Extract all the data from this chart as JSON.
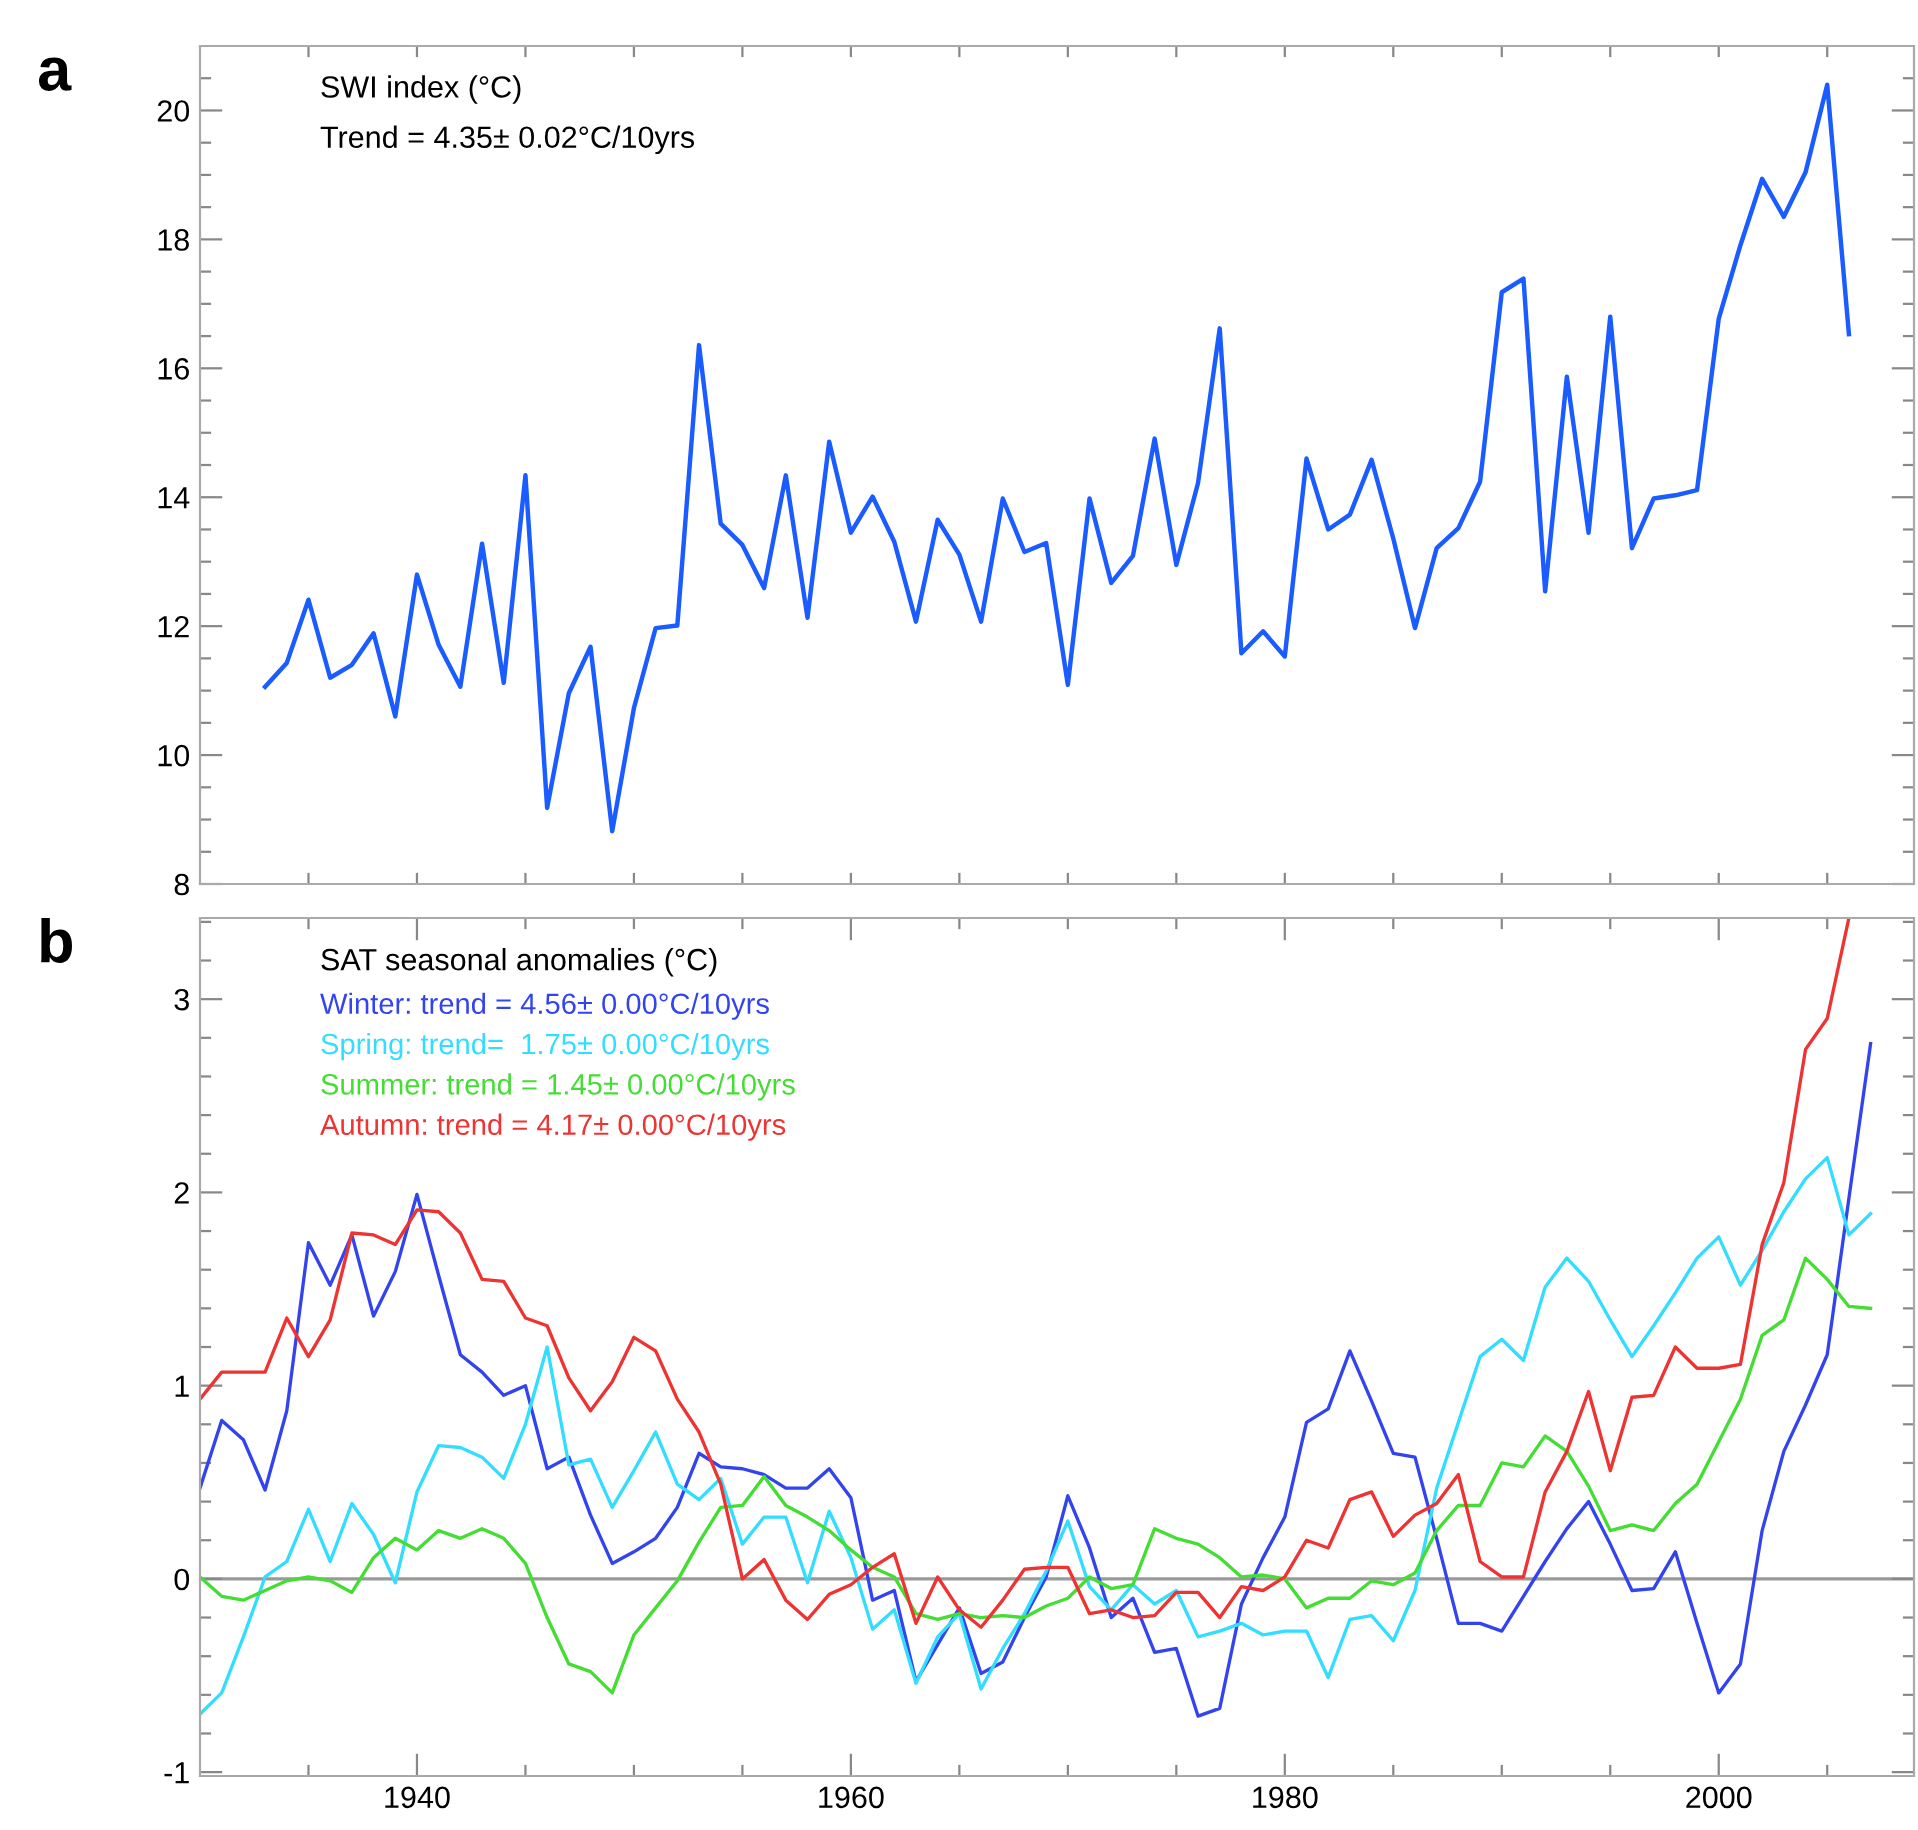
{
  "chart_data": [
    {
      "type": "line",
      "title": "a",
      "annotations": [
        "SWI index (°C)",
        "Trend = 4.35± 0.02°C/10yrs"
      ],
      "xlim": [
        1930,
        2009
      ],
      "ylim": [
        8,
        21
      ],
      "tick_labels": "y",
      "xticks": [
        {
          "value": 1935,
          "label": null
        },
        {
          "value": 1940,
          "label": null
        },
        {
          "value": 1945,
          "label": null
        },
        {
          "value": 1950,
          "label": null
        },
        {
          "value": 1955,
          "label": null
        },
        {
          "value": 1960,
          "label": null
        },
        {
          "value": 1965,
          "label": null
        },
        {
          "value": 1970,
          "label": null
        },
        {
          "value": 1975,
          "label": null
        },
        {
          "value": 1980,
          "label": null
        },
        {
          "value": 1985,
          "label": null
        },
        {
          "value": 1990,
          "label": null
        },
        {
          "value": 1995,
          "label": null
        },
        {
          "value": 2000,
          "label": null
        },
        {
          "value": 2005,
          "label": null
        }
      ],
      "yticks": [
        8,
        {
          "value": 8.5,
          "label": null
        },
        {
          "value": 9,
          "label": null
        },
        {
          "value": 9.5,
          "label": null
        },
        10,
        {
          "value": 10.5,
          "label": null
        },
        {
          "value": 11,
          "label": null
        },
        {
          "value": 11.5,
          "label": null
        },
        12,
        {
          "value": 12.5,
          "label": null
        },
        {
          "value": 13,
          "label": null
        },
        {
          "value": 13.5,
          "label": null
        },
        14,
        {
          "value": 14.5,
          "label": null
        },
        {
          "value": 15,
          "label": null
        },
        {
          "value": 15.5,
          "label": null
        },
        16,
        {
          "value": 16.5,
          "label": null
        },
        {
          "value": 17,
          "label": null
        },
        {
          "value": 17.5,
          "label": null
        },
        18,
        {
          "value": 18.5,
          "label": null
        },
        {
          "value": 19,
          "label": null
        },
        {
          "value": 19.5,
          "label": null
        },
        20,
        {
          "value": 20.5,
          "label": null
        }
      ],
      "series": [
        {
          "color": "#1a5cff",
          "x": [
            1933,
            1934,
            1935,
            1936,
            1937,
            1938,
            1939,
            1940,
            1941,
            1942,
            1943,
            1944,
            1945,
            1946,
            1947,
            1948,
            1949,
            1950,
            1951,
            1952,
            1953,
            1954,
            1955,
            1956,
            1957,
            1958,
            1959,
            1960,
            1961,
            1962,
            1963,
            1964,
            1965,
            1966,
            1967,
            1968,
            1969,
            1970,
            1971,
            1972,
            1973,
            1974,
            1975,
            1976,
            1977,
            1978,
            1979,
            1980,
            1981,
            1982,
            1983,
            1984,
            1985,
            1986,
            1987,
            1988,
            1989,
            1990,
            1991,
            1992,
            1993,
            1994,
            1995,
            1996,
            1997,
            1998,
            1999,
            2000,
            2001,
            2002,
            2003,
            2004,
            2005,
            2006
          ],
          "values": [
            11.06,
            11.43,
            12.41,
            11.2,
            11.4,
            11.89,
            10.6,
            12.8,
            11.71,
            11.06,
            13.28,
            11.12,
            14.34,
            9.18,
            10.96,
            11.68,
            8.82,
            10.73,
            11.97,
            12.01,
            16.36,
            13.59,
            13.26,
            12.59,
            14.34,
            12.13,
            14.86,
            13.45,
            14.01,
            13.31,
            12.07,
            13.65,
            13.11,
            12.07,
            13.98,
            13.15,
            13.29,
            11.09,
            13.98,
            12.67,
            13.09,
            14.91,
            12.95,
            14.22,
            16.62,
            11.58,
            11.92,
            11.53,
            14.6,
            13.5,
            13.73,
            14.58,
            13.36,
            11.97,
            13.21,
            13.52,
            14.24,
            17.18,
            17.39,
            12.54,
            15.87,
            13.45,
            16.8,
            13.21,
            13.98,
            14.03,
            14.11,
            16.77,
            17.91,
            18.94,
            18.35,
            19.04,
            20.4,
            16.53
          ]
        }
      ]
    },
    {
      "type": "line",
      "title": "b",
      "annotations": [
        "SAT seasonal anomalies (°C)"
      ],
      "legend": "top left",
      "xlim": [
        1930,
        2009
      ],
      "ylim": [
        -1.02,
        3.42
      ],
      "xticks": [
        {
          "value": 1935,
          "label": null
        },
        1940,
        {
          "value": 1945,
          "label": null
        },
        {
          "value": 1950,
          "label": null
        },
        {
          "value": 1955,
          "label": null
        },
        1960,
        {
          "value": 1965,
          "label": null
        },
        {
          "value": 1970,
          "label": null
        },
        {
          "value": 1975,
          "label": null
        },
        1980,
        {
          "value": 1985,
          "label": null
        },
        {
          "value": 1990,
          "label": null
        },
        {
          "value": 1995,
          "label": null
        },
        2000,
        {
          "value": 2005,
          "label": null
        }
      ],
      "yticks": [
        -1,
        {
          "value": -0.8,
          "label": null
        },
        {
          "value": -0.6,
          "label": null
        },
        {
          "value": -0.4,
          "label": null
        },
        {
          "value": -0.2,
          "label": null
        },
        0,
        {
          "value": 0.2,
          "label": null
        },
        {
          "value": 0.4,
          "label": null
        },
        {
          "value": 0.6,
          "label": null
        },
        {
          "value": 0.8,
          "label": null
        },
        1,
        {
          "value": 1.2,
          "label": null
        },
        {
          "value": 1.4,
          "label": null
        },
        {
          "value": 1.6,
          "label": null
        },
        {
          "value": 1.8,
          "label": null
        },
        2,
        {
          "value": 2.2,
          "label": null
        },
        {
          "value": 2.4,
          "label": null
        },
        {
          "value": 2.6,
          "label": null
        },
        {
          "value": 2.8,
          "label": null
        },
        3,
        {
          "value": 3.2,
          "label": null
        },
        {
          "value": 3.4,
          "label": null
        }
      ],
      "ref_lines": [
        {
          "axis": "y",
          "value": 0,
          "label": null,
          "color": "#999999"
        }
      ],
      "series": [
        {
          "name": "Winter: trend = 4.56± 0.00°C/10yrs",
          "color": "#3344ee",
          "x": [
            1930,
            1931,
            1932,
            1933,
            1934,
            1935,
            1936,
            1937,
            1938,
            1939,
            1940,
            1941,
            1942,
            1943,
            1944,
            1945,
            1946,
            1947,
            1948,
            1949,
            1950,
            1951,
            1952,
            1953,
            1954,
            1955,
            1956,
            1957,
            1958,
            1959,
            1960,
            1961,
            1962,
            1963,
            1964,
            1965,
            1966,
            1967,
            1968,
            1969,
            1970,
            1971,
            1972,
            1973,
            1974,
            1975,
            1976,
            1977,
            1978,
            1979,
            1980,
            1981,
            1982,
            1983,
            1984,
            1985,
            1986,
            1987,
            1988,
            1989,
            1990,
            1991,
            1992,
            1993,
            1994,
            1995,
            1996,
            1997,
            1998,
            1999,
            2000,
            2001,
            2002,
            2003,
            2004,
            2005,
            2006,
            2007
          ],
          "values": [
            0.47,
            0.82,
            0.72,
            0.46,
            0.87,
            1.74,
            1.52,
            1.78,
            1.36,
            1.59,
            1.99,
            1.57,
            1.16,
            1.07,
            0.95,
            1.0,
            0.57,
            0.63,
            0.33,
            0.08,
            0.14,
            0.21,
            0.37,
            0.65,
            0.58,
            0.57,
            0.54,
            0.47,
            0.47,
            0.57,
            0.42,
            -0.11,
            -0.06,
            -0.53,
            -0.34,
            -0.15,
            -0.49,
            -0.43,
            -0.2,
            0.01,
            0.43,
            0.16,
            -0.2,
            -0.1,
            -0.38,
            -0.36,
            -0.71,
            -0.67,
            -0.13,
            0.11,
            0.32,
            0.81,
            0.88,
            1.18,
            0.92,
            0.65,
            0.63,
            0.21,
            -0.23,
            -0.23,
            -0.27,
            -0.09,
            0.09,
            0.26,
            0.4,
            0.18,
            -0.06,
            -0.05,
            0.14,
            -0.23,
            -0.59,
            -0.44,
            0.25,
            0.66,
            0.9,
            1.16,
            1.97,
            2.77
          ]
        },
        {
          "name": "Spring: trend=  1.75± 0.00°C/10yrs",
          "color": "#33ddff",
          "x": [
            1930,
            1931,
            1932,
            1933,
            1934,
            1935,
            1936,
            1937,
            1938,
            1939,
            1940,
            1941,
            1942,
            1943,
            1944,
            1945,
            1946,
            1947,
            1948,
            1949,
            1950,
            1951,
            1952,
            1953,
            1954,
            1955,
            1956,
            1957,
            1958,
            1959,
            1960,
            1961,
            1962,
            1963,
            1964,
            1965,
            1966,
            1967,
            1968,
            1969,
            1970,
            1971,
            1972,
            1973,
            1974,
            1975,
            1976,
            1977,
            1978,
            1979,
            1980,
            1981,
            1982,
            1983,
            1984,
            1985,
            1986,
            1987,
            1988,
            1989,
            1990,
            1991,
            1992,
            1993,
            1994,
            1995,
            1996,
            1997,
            1998,
            1999,
            2000,
            2001,
            2002,
            2003,
            2004,
            2005,
            2006,
            2007
          ],
          "values": [
            -0.7,
            -0.59,
            -0.3,
            0.01,
            0.09,
            0.36,
            0.09,
            0.39,
            0.23,
            -0.02,
            0.45,
            0.69,
            0.68,
            0.63,
            0.52,
            0.8,
            1.2,
            0.59,
            0.62,
            0.37,
            0.56,
            0.76,
            0.49,
            0.41,
            0.52,
            0.18,
            0.32,
            0.32,
            -0.02,
            0.35,
            0.11,
            -0.26,
            -0.16,
            -0.54,
            -0.3,
            -0.18,
            -0.57,
            -0.36,
            -0.18,
            0.04,
            0.3,
            -0.04,
            -0.16,
            -0.03,
            -0.13,
            -0.06,
            -0.3,
            -0.27,
            -0.23,
            -0.29,
            -0.27,
            -0.27,
            -0.51,
            -0.21,
            -0.19,
            -0.32,
            -0.06,
            0.47,
            0.81,
            1.15,
            1.24,
            1.13,
            1.51,
            1.66,
            1.54,
            1.34,
            1.15,
            1.31,
            1.48,
            1.66,
            1.77,
            1.52,
            1.7,
            1.9,
            2.07,
            2.18,
            1.78,
            1.89
          ]
        },
        {
          "name": "Summer: trend = 1.45± 0.00°C/10yrs",
          "color": "#44dd33",
          "x": [
            1930,
            1931,
            1932,
            1933,
            1934,
            1935,
            1936,
            1937,
            1938,
            1939,
            1940,
            1941,
            1942,
            1943,
            1944,
            1945,
            1946,
            1947,
            1948,
            1949,
            1950,
            1951,
            1952,
            1953,
            1954,
            1955,
            1956,
            1957,
            1958,
            1959,
            1960,
            1961,
            1962,
            1963,
            1964,
            1965,
            1966,
            1967,
            1968,
            1969,
            1970,
            1971,
            1972,
            1973,
            1974,
            1975,
            1976,
            1977,
            1978,
            1979,
            1980,
            1981,
            1982,
            1983,
            1984,
            1985,
            1986,
            1987,
            1988,
            1989,
            1990,
            1991,
            1992,
            1993,
            1994,
            1995,
            1996,
            1997,
            1998,
            1999,
            2000,
            2001,
            2002,
            2003,
            2004,
            2005,
            2006,
            2007
          ],
          "values": [
            0.01,
            -0.09,
            -0.11,
            -0.06,
            -0.01,
            0.01,
            -0.01,
            -0.07,
            0.11,
            0.21,
            0.15,
            0.25,
            0.21,
            0.26,
            0.21,
            0.08,
            -0.2,
            -0.44,
            -0.48,
            -0.59,
            -0.29,
            -0.15,
            -0.01,
            0.19,
            0.37,
            0.38,
            0.53,
            0.38,
            0.32,
            0.25,
            0.15,
            0.06,
            0.01,
            -0.18,
            -0.21,
            -0.18,
            -0.2,
            -0.19,
            -0.2,
            -0.14,
            -0.1,
            0.01,
            -0.05,
            -0.03,
            0.26,
            0.21,
            0.18,
            0.11,
            0.01,
            0.02,
            0.0,
            -0.15,
            -0.1,
            -0.1,
            -0.01,
            -0.03,
            0.03,
            0.25,
            0.38,
            0.38,
            0.6,
            0.58,
            0.74,
            0.66,
            0.48,
            0.25,
            0.28,
            0.25,
            0.39,
            0.49,
            0.71,
            0.93,
            1.26,
            1.34,
            1.66,
            1.55,
            1.41,
            1.4
          ]
        },
        {
          "name": "Autumn: trend = 4.17± 0.00°C/10yrs",
          "color": "#ee3333",
          "x": [
            1930,
            1931,
            1932,
            1933,
            1934,
            1935,
            1936,
            1937,
            1938,
            1939,
            1940,
            1941,
            1942,
            1943,
            1944,
            1945,
            1946,
            1947,
            1948,
            1949,
            1950,
            1951,
            1952,
            1953,
            1954,
            1955,
            1956,
            1957,
            1958,
            1959,
            1960,
            1961,
            1962,
            1963,
            1964,
            1965,
            1966,
            1967,
            1968,
            1969,
            1970,
            1971,
            1972,
            1973,
            1974,
            1975,
            1976,
            1977,
            1978,
            1979,
            1980,
            1981,
            1982,
            1983,
            1984,
            1985,
            1986,
            1987,
            1988,
            1989,
            1990,
            1991,
            1992,
            1993,
            1994,
            1995,
            1996,
            1997,
            1998,
            1999,
            2000,
            2001,
            2002,
            2003,
            2004,
            2005,
            2006
          ],
          "values": [
            0.93,
            1.07,
            1.07,
            1.07,
            1.35,
            1.15,
            1.34,
            1.79,
            1.78,
            1.73,
            1.91,
            1.9,
            1.79,
            1.55,
            1.54,
            1.35,
            1.31,
            1.04,
            0.87,
            1.02,
            1.25,
            1.18,
            0.93,
            0.76,
            0.49,
            0.0,
            0.1,
            -0.11,
            -0.21,
            -0.08,
            -0.03,
            0.06,
            0.13,
            -0.23,
            0.01,
            -0.16,
            -0.25,
            -0.11,
            0.05,
            0.06,
            0.06,
            -0.18,
            -0.16,
            -0.2,
            -0.19,
            -0.07,
            -0.07,
            -0.2,
            -0.04,
            -0.06,
            0.01,
            0.2,
            0.16,
            0.41,
            0.45,
            0.22,
            0.33,
            0.39,
            0.54,
            0.09,
            0.01,
            0.01,
            0.45,
            0.66,
            0.97,
            0.56,
            0.94,
            0.95,
            1.2,
            1.09,
            1.09,
            1.11,
            1.73,
            2.05,
            2.74,
            2.9,
            3.42
          ]
        }
      ]
    }
  ]
}
